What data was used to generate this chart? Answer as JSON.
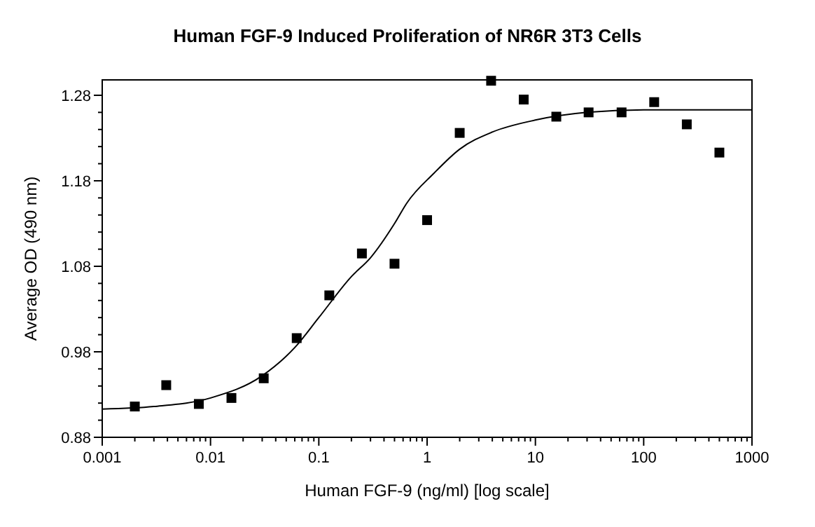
{
  "chart_data": {
    "type": "scatter",
    "title": "Human FGF-9 Induced Proliferation of NR6R 3T3 Cells",
    "xlabel": "Human FGF-9 (ng/ml) [log scale]",
    "ylabel": "Average OD (490 nm)",
    "log": "x",
    "marker": "square",
    "xlim": [
      0.001,
      1000
    ],
    "ylim": [
      0.88,
      1.298
    ],
    "xticks": [
      0.001,
      {
        "value": 0.002,
        "label": null
      },
      {
        "value": 0.003,
        "label": null
      },
      {
        "value": 0.004,
        "label": null
      },
      {
        "value": 0.005,
        "label": null
      },
      {
        "value": 0.006,
        "label": null
      },
      {
        "value": 0.007,
        "label": null
      },
      {
        "value": 0.008,
        "label": null
      },
      {
        "value": 0.009,
        "label": null
      },
      0.01,
      {
        "value": 0.02,
        "label": null
      },
      {
        "value": 0.03,
        "label": null
      },
      {
        "value": 0.04,
        "label": null
      },
      {
        "value": 0.05,
        "label": null
      },
      {
        "value": 0.06,
        "label": null
      },
      {
        "value": 0.07,
        "label": null
      },
      {
        "value": 0.08,
        "label": null
      },
      {
        "value": 0.09,
        "label": null
      },
      0.1,
      {
        "value": 0.2,
        "label": null
      },
      {
        "value": 0.3,
        "label": null
      },
      {
        "value": 0.4,
        "label": null
      },
      {
        "value": 0.5,
        "label": null
      },
      {
        "value": 0.6,
        "label": null
      },
      {
        "value": 0.7,
        "label": null
      },
      {
        "value": 0.8,
        "label": null
      },
      {
        "value": 0.9,
        "label": null
      },
      1,
      {
        "value": 2,
        "label": null
      },
      {
        "value": 3,
        "label": null
      },
      {
        "value": 4,
        "label": null
      },
      {
        "value": 5,
        "label": null
      },
      {
        "value": 6,
        "label": null
      },
      {
        "value": 7,
        "label": null
      },
      {
        "value": 8,
        "label": null
      },
      {
        "value": 9,
        "label": null
      },
      10,
      {
        "value": 20,
        "label": null
      },
      {
        "value": 30,
        "label": null
      },
      {
        "value": 40,
        "label": null
      },
      {
        "value": 50,
        "label": null
      },
      {
        "value": 60,
        "label": null
      },
      {
        "value": 70,
        "label": null
      },
      {
        "value": 80,
        "label": null
      },
      {
        "value": 90,
        "label": null
      },
      100,
      {
        "value": 200,
        "label": null
      },
      {
        "value": 300,
        "label": null
      },
      {
        "value": 400,
        "label": null
      },
      {
        "value": 500,
        "label": null
      },
      {
        "value": 600,
        "label": null
      },
      {
        "value": 700,
        "label": null
      },
      {
        "value": 800,
        "label": null
      },
      {
        "value": 900,
        "label": null
      },
      1000
    ],
    "yticks": [
      0.88,
      {
        "value": 0.9,
        "label": null
      },
      {
        "value": 0.92,
        "label": null
      },
      {
        "value": 0.94,
        "label": null
      },
      {
        "value": 0.96,
        "label": null
      },
      0.98,
      {
        "value": 1.0,
        "label": null
      },
      {
        "value": 1.02,
        "label": null
      },
      {
        "value": 1.04,
        "label": null
      },
      {
        "value": 1.06,
        "label": null
      },
      1.08,
      {
        "value": 1.1,
        "label": null
      },
      {
        "value": 1.12,
        "label": null
      },
      {
        "value": 1.14,
        "label": null
      },
      {
        "value": 1.16,
        "label": null
      },
      1.18,
      {
        "value": 1.2,
        "label": null
      },
      {
        "value": 1.22,
        "label": null
      },
      {
        "value": 1.24,
        "label": null
      },
      {
        "value": 1.26,
        "label": null
      },
      1.28
    ],
    "series": [
      {
        "color": "#000000",
        "x": [
          0.002,
          0.0039,
          0.0078,
          0.0156,
          0.031,
          0.0625,
          0.125,
          0.25,
          0.5,
          1,
          2,
          3.9,
          7.8,
          15.6,
          31,
          62.5,
          125,
          250,
          500
        ],
        "values": [
          0.916,
          0.941,
          0.919,
          0.926,
          0.949,
          0.996,
          1.046,
          1.095,
          1.083,
          1.134,
          1.236,
          1.297,
          1.275,
          1.255,
          1.26,
          1.26,
          1.272,
          1.246,
          1.213
        ]
      },
      {
        "type": "line",
        "color": "#000000",
        "marker": "none",
        "x": [
          0.001,
          0.003,
          0.01,
          0.03,
          0.06,
          0.1,
          0.2,
          0.3,
          0.5,
          0.65,
          1.16,
          2,
          4,
          10,
          30,
          100,
          1000
        ],
        "values": [
          0.913,
          0.916,
          0.926,
          0.952,
          0.985,
          1.02,
          1.068,
          1.09,
          1.13,
          1.154,
          1.189,
          1.217,
          1.237,
          1.251,
          1.26,
          1.263,
          1.263
        ]
      }
    ]
  }
}
